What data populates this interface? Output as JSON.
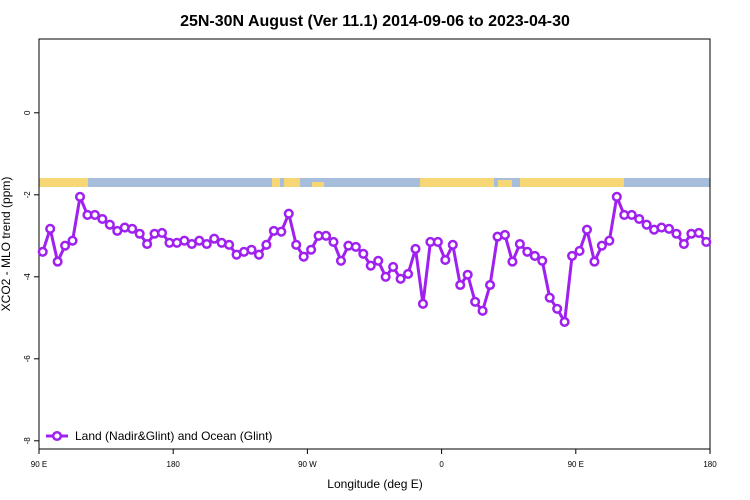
{
  "chart_data": {
    "type": "line",
    "title": "25N-30N August (Ver 11.1)   2014-09-06 to 2023-04-30",
    "x_label": "Longitude (deg E)",
    "y_label": "XCO2 - MLO trend (ppm)",
    "xlim": [
      90,
      540
    ],
    "ylim": [
      -8.2,
      1.8
    ],
    "xticks": [
      {
        "value": 90,
        "label": "90 E"
      },
      180,
      {
        "value": 270,
        "label": "90 W"
      },
      {
        "value": 360,
        "label": "0"
      },
      {
        "value": 450,
        "label": "90 E"
      },
      {
        "value": 540,
        "label": "180"
      }
    ],
    "yticks": [
      0,
      -2,
      -4,
      -6,
      -8
    ],
    "legend": "bottomleft",
    "x": [
      92.5,
      97.5,
      102.5,
      107.5,
      112.5,
      117.5,
      122.5,
      127.5,
      132.5,
      137.5,
      142.5,
      147.5,
      152.5,
      157.5,
      162.5,
      167.5,
      172.5,
      177.5,
      182.5,
      187.5,
      192.5,
      197.5,
      202.5,
      207.5,
      212.5,
      217.5,
      222.5,
      227.5,
      232.5,
      237.5,
      242.5,
      247.5,
      252.5,
      257.5,
      262.5,
      267.5,
      272.5,
      277.5,
      282.5,
      287.5,
      292.5,
      297.5,
      302.5,
      307.5,
      312.5,
      317.5,
      322.5,
      327.5,
      332.5,
      337.5,
      342.5,
      347.5,
      352.5,
      357.5,
      362.5,
      367.5,
      372.5,
      377.5,
      382.5,
      387.5,
      392.5,
      397.5,
      402.5,
      407.5,
      412.5,
      417.5,
      422.5,
      427.5,
      432.5,
      437.5,
      442.5,
      447.5,
      452.5,
      457.5,
      462.5,
      467.5,
      472.5,
      477.5,
      482.5,
      487.5,
      492.5,
      497.5,
      502.5,
      507.5,
      512.5,
      517.5,
      522.5,
      527.5,
      532.5,
      537.5
    ],
    "series": [
      {
        "name": "Land (Nadir&Glint) and Ocean (Glint)",
        "color": "#a020f0",
        "values": [
          -3.39,
          -2.83,
          -3.63,
          -3.24,
          -3.12,
          -2.05,
          -2.49,
          -2.49,
          -2.59,
          -2.73,
          -2.88,
          -2.8,
          -2.83,
          -2.95,
          -3.2,
          -2.95,
          -2.93,
          -3.17,
          -3.17,
          -3.12,
          -3.2,
          -3.12,
          -3.2,
          -3.07,
          -3.17,
          -3.22,
          -3.46,
          -3.39,
          -3.34,
          -3.46,
          -3.22,
          -2.88,
          -2.9,
          -2.46,
          -3.22,
          -3.51,
          -3.34,
          -3.0,
          -3.0,
          -3.15,
          -3.61,
          -3.24,
          -3.27,
          -3.44,
          -3.73,
          -3.61,
          -4.0,
          -3.76,
          -4.05,
          -3.93,
          -3.32,
          -4.66,
          -3.15,
          -3.15,
          -3.59,
          -3.22,
          -4.2,
          -3.95,
          -4.61,
          -4.83,
          -4.2,
          -3.02,
          -2.98,
          -3.63,
          -3.2,
          -3.39,
          -3.49,
          -3.61,
          -4.51,
          -4.78,
          -5.1,
          -3.49,
          -3.37,
          -2.85,
          -3.63,
          -3.24,
          -3.12,
          -2.05,
          -2.49,
          -2.49,
          -2.59,
          -2.73,
          -2.85,
          -2.8,
          -2.83,
          -2.95,
          -3.2,
          -2.95,
          -2.93,
          -3.15
        ]
      }
    ]
  }
}
